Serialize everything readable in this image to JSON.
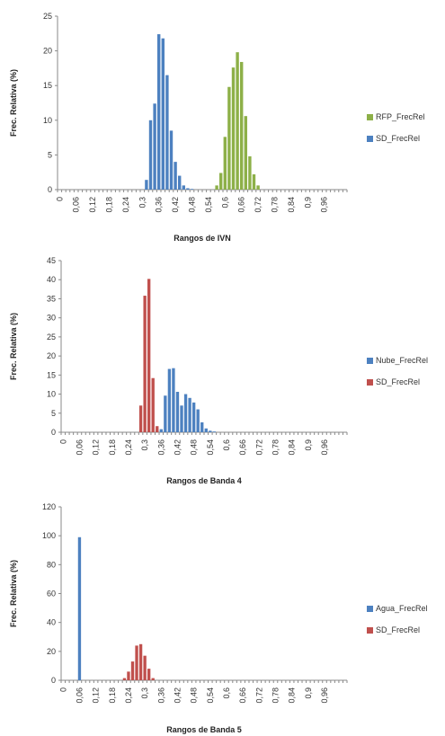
{
  "chart_data": [
    {
      "type": "bar",
      "xlabel": "Rangos de IVN",
      "ylabel": "Frec. Relativa (%)",
      "ylim": [
        0,
        25
      ],
      "yticks": [
        0,
        5,
        10,
        15,
        20,
        25
      ],
      "xticks": [
        "0",
        "0,06",
        "0,12",
        "0,18",
        "0,24",
        "0,3",
        "0,36",
        "0,42",
        "0,48",
        "0,54",
        "0,6",
        "0,66",
        "0,72",
        "0,78",
        "0,84",
        "0,9",
        "0,96"
      ],
      "legend_position": "right",
      "series": [
        {
          "name": "RFP_FrecRel",
          "color": "#8db048",
          "values": [
            0,
            0,
            0,
            0,
            0,
            0,
            0,
            0,
            0,
            0,
            0,
            0,
            0,
            0,
            0,
            0,
            0,
            0,
            0,
            0,
            0,
            0,
            0,
            0,
            0,
            0,
            0,
            0,
            0,
            0,
            0,
            0,
            0,
            0,
            0,
            0,
            0,
            0,
            0.6,
            2.4,
            7.6,
            14.8,
            17.6,
            19.8,
            18.4,
            10.6,
            4.8,
            2.2,
            0.6,
            0,
            0,
            0,
            0,
            0,
            0,
            0,
            0,
            0,
            0,
            0,
            0,
            0,
            0,
            0,
            0,
            0,
            0,
            0,
            0,
            0
          ]
        },
        {
          "name": "SD_FrecRel",
          "color": "#4d81c0",
          "values": [
            0,
            0,
            0,
            0,
            0,
            0,
            0,
            0,
            0,
            0,
            0,
            0,
            0,
            0,
            0,
            0,
            0,
            0,
            0,
            0,
            0,
            1.4,
            10.0,
            12.4,
            22.4,
            21.8,
            16.5,
            8.5,
            4.0,
            2.0,
            0.6,
            0.2,
            0.1,
            0,
            0,
            0,
            0,
            0,
            0,
            0,
            0,
            0,
            0,
            0,
            0,
            0,
            0,
            0,
            0,
            0,
            0,
            0,
            0,
            0,
            0,
            0,
            0,
            0,
            0,
            0,
            0,
            0,
            0,
            0,
            0,
            0,
            0,
            0,
            0,
            0
          ]
        }
      ]
    },
    {
      "type": "bar",
      "xlabel": "Rangos de Banda 4",
      "ylabel": "Frec. Relativa (%)",
      "ylim": [
        0,
        45
      ],
      "yticks": [
        0,
        5,
        10,
        15,
        20,
        25,
        30,
        35,
        40,
        45
      ],
      "xticks": [
        "0",
        "0,06",
        "0,12",
        "0,18",
        "0,24",
        "0,3",
        "0,36",
        "0,42",
        "0,48",
        "0,54",
        "0,6",
        "0,66",
        "0,72",
        "0,78",
        "0,84",
        "0,9",
        "0,96"
      ],
      "legend_position": "right",
      "series": [
        {
          "name": "Nube_FrecRel",
          "color": "#4d81c0",
          "values": [
            0,
            0,
            0,
            0,
            0,
            0,
            0,
            0,
            0,
            0,
            0,
            0,
            0,
            0,
            0,
            0,
            0,
            0,
            0,
            0,
            0,
            0,
            0,
            0.6,
            0.8,
            9.6,
            16.6,
            16.8,
            10.6,
            7.0,
            10.0,
            9.0,
            7.8,
            6.0,
            2.6,
            1.0,
            0.4,
            0.2,
            0,
            0,
            0,
            0,
            0,
            0,
            0,
            0,
            0,
            0,
            0,
            0,
            0,
            0,
            0,
            0,
            0,
            0,
            0,
            0,
            0,
            0,
            0,
            0,
            0,
            0,
            0,
            0,
            0,
            0,
            0,
            0
          ]
        },
        {
          "name": "SD_FrecRel",
          "color": "#c0504d",
          "values": [
            0,
            0,
            0,
            0,
            0,
            0,
            0,
            0,
            0,
            0,
            0,
            0,
            0,
            0,
            0,
            0,
            0,
            0,
            0,
            7.0,
            35.8,
            40.2,
            14.2,
            1.6,
            0,
            0,
            0,
            0,
            0,
            0,
            0,
            0,
            0,
            0,
            0,
            0,
            0,
            0,
            0,
            0,
            0,
            0,
            0,
            0,
            0,
            0,
            0,
            0,
            0,
            0,
            0,
            0,
            0,
            0,
            0,
            0,
            0,
            0,
            0,
            0,
            0,
            0,
            0,
            0,
            0,
            0,
            0,
            0,
            0,
            0
          ]
        }
      ]
    },
    {
      "type": "bar",
      "xlabel": "Rangos de Banda 5",
      "ylabel": "Frec. Relativa (%)",
      "ylim": [
        0,
        120
      ],
      "yticks": [
        0,
        20,
        40,
        60,
        80,
        100,
        120
      ],
      "xticks": [
        "0",
        "0,06",
        "0,12",
        "0,18",
        "0,24",
        "0,3",
        "0,36",
        "0,42",
        "0,48",
        "0,54",
        "0,6",
        "0,66",
        "0,72",
        "0,78",
        "0,84",
        "0,9",
        "0,96"
      ],
      "legend_position": "right",
      "series": [
        {
          "name": "Agua_FrecRel",
          "color": "#4d81c0",
          "values": [
            0,
            0,
            0,
            0,
            99,
            0,
            0,
            0,
            0,
            0,
            0,
            0,
            0,
            0,
            0,
            0,
            0,
            0,
            0,
            0,
            0,
            0,
            0,
            0,
            0,
            0,
            0,
            0,
            0,
            0,
            0,
            0,
            0,
            0,
            0,
            0,
            0,
            0,
            0,
            0,
            0,
            0,
            0,
            0,
            0,
            0,
            0,
            0,
            0,
            0,
            0,
            0,
            0,
            0,
            0,
            0,
            0,
            0,
            0,
            0,
            0,
            0,
            0,
            0,
            0,
            0,
            0,
            0,
            0,
            0
          ]
        },
        {
          "name": "SD_FrecRel",
          "color": "#c0504d",
          "values": [
            0,
            0,
            0,
            0,
            0,
            0,
            0,
            0,
            0,
            0,
            0,
            0,
            0,
            0,
            0,
            1.5,
            6,
            13,
            24,
            25,
            17,
            8,
            1.5,
            0,
            0,
            0,
            0,
            0,
            0,
            0,
            0,
            0,
            0,
            0,
            0,
            0,
            0,
            0,
            0,
            0,
            0,
            0,
            0,
            0,
            0,
            0,
            0,
            0,
            0,
            0,
            0,
            0,
            0,
            0,
            0,
            0,
            0,
            0,
            0,
            0,
            0,
            0,
            0,
            0,
            0,
            0,
            0,
            0,
            0,
            0
          ]
        }
      ]
    }
  ]
}
